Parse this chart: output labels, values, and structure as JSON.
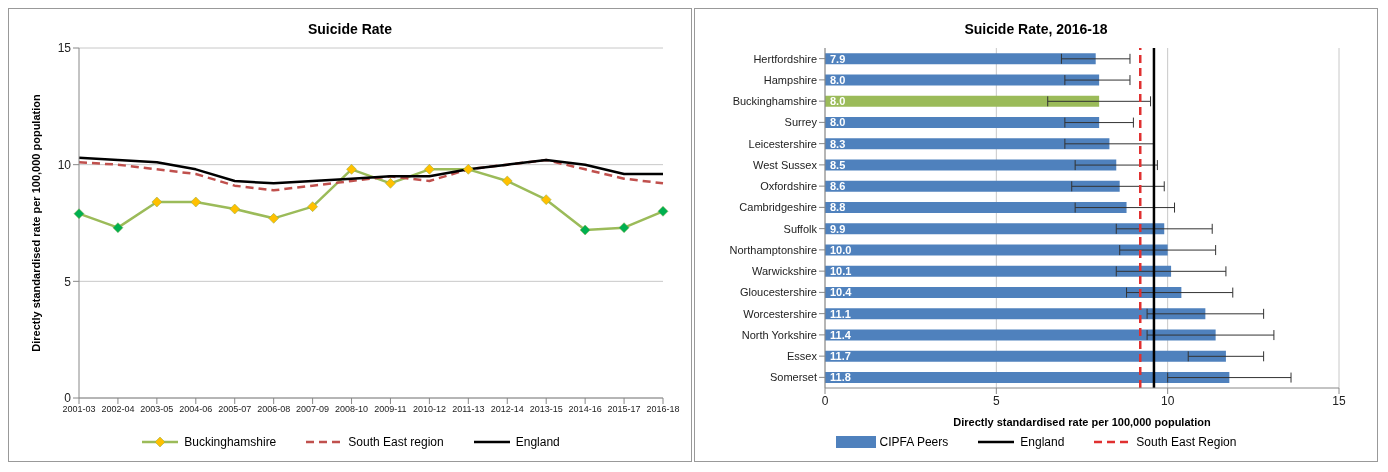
{
  "chart_data": [
    {
      "type": "line",
      "title": "Suicide Rate",
      "ylabel": "Directly standardised rate per 100,000 population",
      "categories": [
        "2001-03",
        "2002-04",
        "2003-05",
        "2004-06",
        "2005-07",
        "2006-08",
        "2007-09",
        "2008-10",
        "2009-11",
        "2010-12",
        "2011-13",
        "2012-14",
        "2013-15",
        "2014-16",
        "2015-17",
        "2016-18"
      ],
      "series": [
        {
          "name": "Buckinghamshire",
          "color": "#9bbb59",
          "marker": "diamond",
          "line_style": "solid",
          "colors": [
            "#00b050",
            "#00b050",
            "#ffc000",
            "#ffc000",
            "#ffc000",
            "#ffc000",
            "#ffc000",
            "#ffc000",
            "#ffc000",
            "#ffc000",
            "#ffc000",
            "#ffc000",
            "#ffc000",
            "#00b050",
            "#00b050",
            "#00b050"
          ],
          "values": [
            7.9,
            7.3,
            8.4,
            8.4,
            8.1,
            7.7,
            8.2,
            9.8,
            9.2,
            9.8,
            9.8,
            9.3,
            8.5,
            7.2,
            7.3,
            8.0
          ]
        },
        {
          "name": "South East region",
          "color": "#c0504d",
          "marker": "none",
          "line_style": "dashed",
          "values": [
            10.1,
            10.0,
            9.8,
            9.6,
            9.1,
            8.9,
            9.1,
            9.3,
            9.5,
            9.3,
            9.8,
            10.0,
            10.2,
            9.8,
            9.4,
            9.2
          ]
        },
        {
          "name": "England",
          "color": "#000000",
          "marker": "none",
          "line_style": "solid",
          "values": [
            10.3,
            10.2,
            10.1,
            9.8,
            9.3,
            9.2,
            9.3,
            9.4,
            9.5,
            9.5,
            9.8,
            10.0,
            10.2,
            10.0,
            9.6,
            9.6
          ]
        }
      ],
      "ylim": [
        0,
        15
      ],
      "yticks": [
        0,
        5,
        10,
        15
      ],
      "grid": "y",
      "legend": "bottom"
    },
    {
      "type": "bar",
      "orientation": "horizontal",
      "title": "Suicide Rate, 2016-18",
      "xlabel": "Directly standardised rate per 100,000 population",
      "categories": [
        "Hertfordshire",
        "Hampshire",
        "Buckinghamshire",
        "Surrey",
        "Leicestershire",
        "West Sussex",
        "Oxfordshire",
        "Cambridgeshire",
        "Suffolk",
        "Northamptonshire",
        "Warwickshire",
        "Gloucestershire",
        "Worcestershire",
        "North Yorkshire",
        "Essex",
        "Somerset"
      ],
      "series": [
        {
          "name": "CIPFA Peers",
          "color": "#4f81bd",
          "colors": [
            "#4f81bd",
            "#4f81bd",
            "#9bbb59",
            "#4f81bd",
            "#4f81bd",
            "#4f81bd",
            "#4f81bd",
            "#4f81bd",
            "#4f81bd",
            "#4f81bd",
            "#4f81bd",
            "#4f81bd",
            "#4f81bd",
            "#4f81bd",
            "#4f81bd",
            "#4f81bd"
          ],
          "values": [
            7.9,
            8.0,
            8.0,
            8.0,
            8.3,
            8.5,
            8.6,
            8.8,
            9.9,
            10.0,
            10.1,
            10.4,
            11.1,
            11.4,
            11.7,
            11.8
          ],
          "value_labels": [
            "7.9",
            "8.0",
            "8.0",
            "8.0",
            "8.3",
            "8.5",
            "8.6",
            "8.8",
            "9.9",
            "10.0",
            "10.1",
            "10.4",
            "11.1",
            "11.4",
            "11.7",
            "11.8"
          ],
          "errors": [
            [
              6.9,
              8.9
            ],
            [
              7.0,
              8.9
            ],
            [
              6.5,
              9.5
            ],
            [
              7.0,
              9.0
            ],
            [
              7.0,
              9.6
            ],
            [
              7.3,
              9.7
            ],
            [
              7.2,
              9.9
            ],
            [
              7.3,
              10.2
            ],
            [
              8.5,
              11.3
            ],
            [
              8.6,
              11.4
            ],
            [
              8.5,
              11.7
            ],
            [
              8.8,
              11.9
            ],
            [
              9.4,
              12.8
            ],
            [
              9.4,
              13.1
            ],
            [
              10.6,
              12.8
            ],
            [
              10.0,
              13.6
            ]
          ]
        }
      ],
      "ref_lines": [
        {
          "axis": "x",
          "value": 9.6,
          "label": "England",
          "color": "#000000",
          "line_style": "solid"
        },
        {
          "axis": "x",
          "value": 9.2,
          "label": "South East Region",
          "color": "#e03030",
          "line_style": "dashed"
        }
      ],
      "xlim": [
        0,
        15
      ],
      "xticks": [
        0,
        5,
        10,
        15
      ],
      "grid": "x",
      "legend": "bottom"
    }
  ]
}
